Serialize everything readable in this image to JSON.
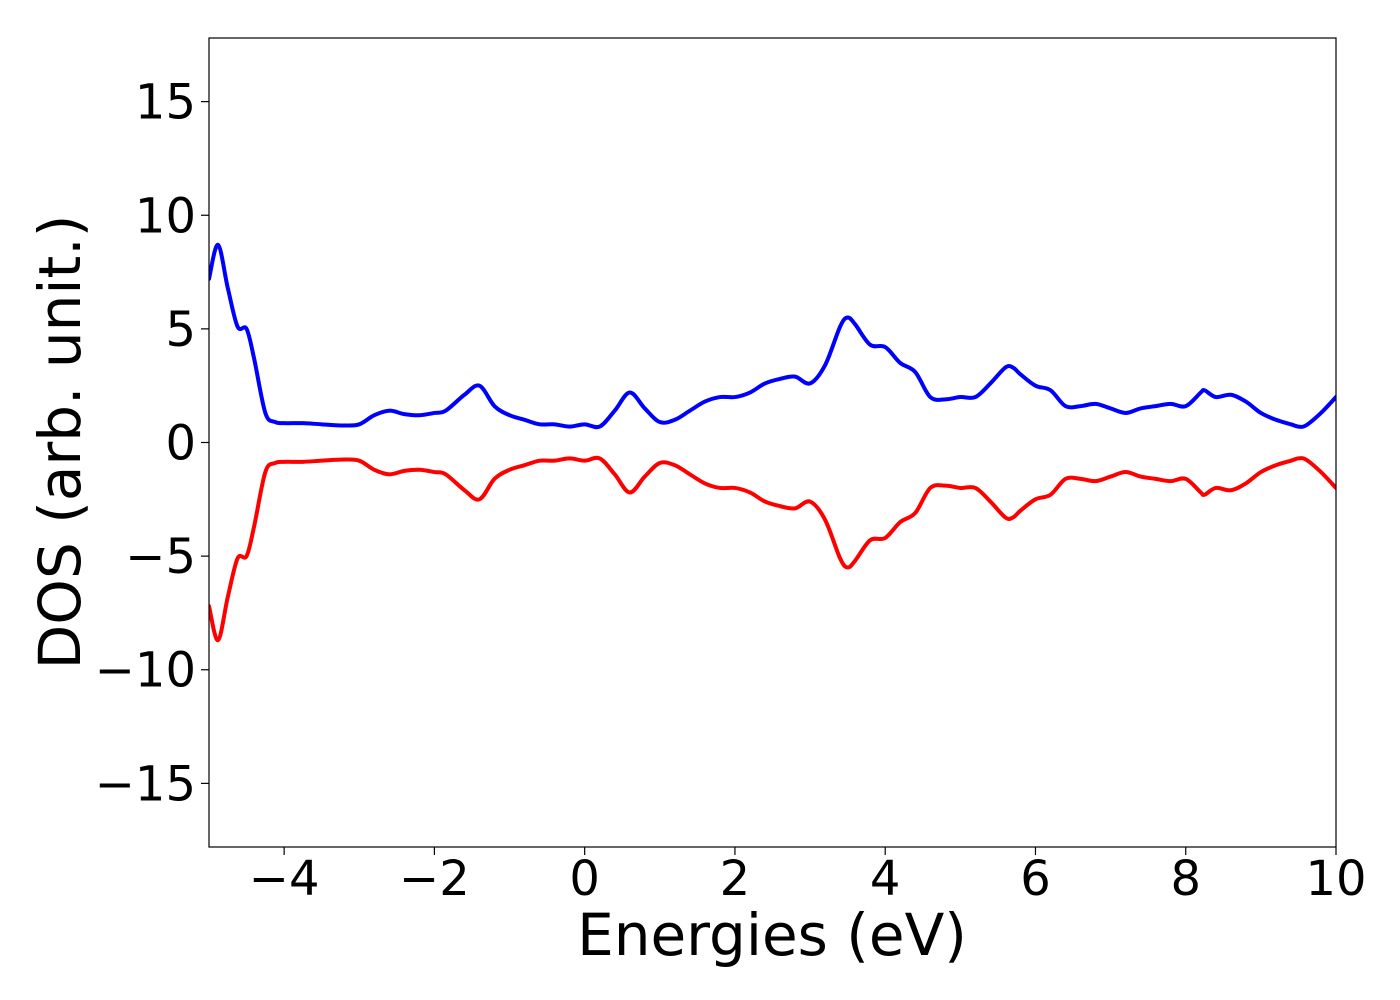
{
  "chart_data": {
    "type": "line",
    "xlabel": "Energies (eV)",
    "ylabel": "DOS (arb. unit.)",
    "xlim": [
      -5,
      10
    ],
    "ylim": [
      -17.8,
      17.8
    ],
    "xticks": [
      -4,
      -2,
      0,
      2,
      4,
      6,
      8,
      10
    ],
    "xtick_labels": [
      "−4",
      "−2",
      "0",
      "2",
      "4",
      "6",
      "8",
      "10"
    ],
    "yticks": [
      -15,
      -10,
      -5,
      0,
      5,
      10,
      15
    ],
    "ytick_labels": [
      "−15",
      "−10",
      "−5",
      "0",
      "5",
      "10",
      "15"
    ],
    "grid": false,
    "legend": "none",
    "series": [
      {
        "color": "#0000ff",
        "x": [
          -5.0,
          -4.88,
          -4.75,
          -4.62,
          -4.5,
          -4.4,
          -4.25,
          -4.12,
          -4.0,
          -3.75,
          -3.5,
          -3.2,
          -3.0,
          -2.8,
          -2.6,
          -2.4,
          -2.2,
          -2.0,
          -1.85,
          -1.6,
          -1.4,
          -1.2,
          -1.0,
          -0.8,
          -0.6,
          -0.4,
          -0.2,
          0.0,
          0.2,
          0.4,
          0.6,
          0.8,
          1.0,
          1.2,
          1.4,
          1.6,
          1.8,
          2.0,
          2.2,
          2.4,
          2.6,
          2.8,
          3.0,
          3.2,
          3.4,
          3.5,
          3.6,
          3.8,
          4.0,
          4.2,
          4.4,
          4.6,
          4.8,
          5.0,
          5.2,
          5.4,
          5.6,
          5.7,
          5.8,
          6.0,
          6.2,
          6.4,
          6.6,
          6.8,
          7.0,
          7.2,
          7.4,
          7.6,
          7.8,
          8.0,
          8.2,
          8.25,
          8.4,
          8.6,
          8.8,
          9.0,
          9.2,
          9.4,
          9.5,
          9.6,
          9.8,
          10.0
        ],
        "y": [
          7.2,
          8.7,
          6.8,
          5.1,
          5.0,
          3.7,
          1.3,
          0.9,
          0.85,
          0.85,
          0.8,
          0.75,
          0.8,
          1.2,
          1.4,
          1.25,
          1.2,
          1.3,
          1.4,
          2.1,
          2.5,
          1.6,
          1.2,
          1.0,
          0.8,
          0.8,
          0.7,
          0.8,
          0.7,
          1.4,
          2.2,
          1.5,
          0.9,
          1.0,
          1.4,
          1.8,
          2.0,
          2.0,
          2.2,
          2.6,
          2.8,
          2.9,
          2.6,
          3.4,
          5.1,
          5.5,
          5.2,
          4.3,
          4.2,
          3.5,
          3.1,
          2.0,
          1.9,
          2.0,
          2.0,
          2.6,
          3.3,
          3.3,
          3.0,
          2.5,
          2.3,
          1.6,
          1.6,
          1.7,
          1.5,
          1.3,
          1.5,
          1.6,
          1.7,
          1.6,
          2.2,
          2.3,
          2.0,
          2.1,
          1.8,
          1.3,
          1.0,
          0.8,
          0.7,
          0.75,
          1.3,
          2.0
        ]
      },
      {
        "color": "#ff0000",
        "x": [
          -5.0,
          -4.88,
          -4.75,
          -4.62,
          -4.5,
          -4.4,
          -4.25,
          -4.12,
          -4.0,
          -3.75,
          -3.5,
          -3.2,
          -3.0,
          -2.8,
          -2.6,
          -2.4,
          -2.2,
          -2.0,
          -1.85,
          -1.6,
          -1.4,
          -1.2,
          -1.0,
          -0.8,
          -0.6,
          -0.4,
          -0.2,
          0.0,
          0.2,
          0.4,
          0.6,
          0.8,
          1.0,
          1.2,
          1.4,
          1.6,
          1.8,
          2.0,
          2.2,
          2.4,
          2.6,
          2.8,
          3.0,
          3.2,
          3.4,
          3.5,
          3.6,
          3.8,
          4.0,
          4.2,
          4.4,
          4.6,
          4.8,
          5.0,
          5.2,
          5.4,
          5.6,
          5.7,
          5.8,
          6.0,
          6.2,
          6.4,
          6.6,
          6.8,
          7.0,
          7.2,
          7.4,
          7.6,
          7.8,
          8.0,
          8.2,
          8.25,
          8.4,
          8.6,
          8.8,
          9.0,
          9.2,
          9.4,
          9.5,
          9.6,
          9.8,
          10.0
        ],
        "y": [
          -7.2,
          -8.7,
          -6.8,
          -5.1,
          -5.0,
          -3.7,
          -1.3,
          -0.9,
          -0.85,
          -0.85,
          -0.8,
          -0.75,
          -0.8,
          -1.2,
          -1.4,
          -1.25,
          -1.2,
          -1.3,
          -1.4,
          -2.1,
          -2.5,
          -1.6,
          -1.2,
          -1.0,
          -0.8,
          -0.8,
          -0.7,
          -0.8,
          -0.7,
          -1.4,
          -2.2,
          -1.5,
          -0.9,
          -1.0,
          -1.4,
          -1.8,
          -2.0,
          -2.0,
          -2.2,
          -2.6,
          -2.8,
          -2.9,
          -2.6,
          -3.4,
          -5.1,
          -5.5,
          -5.2,
          -4.3,
          -4.2,
          -3.5,
          -3.1,
          -2.0,
          -1.9,
          -2.0,
          -2.0,
          -2.6,
          -3.3,
          -3.3,
          -3.0,
          -2.5,
          -2.3,
          -1.6,
          -1.6,
          -1.7,
          -1.5,
          -1.3,
          -1.5,
          -1.6,
          -1.7,
          -1.6,
          -2.2,
          -2.3,
          -2.0,
          -2.1,
          -1.8,
          -1.3,
          -1.0,
          -0.8,
          -0.7,
          -0.75,
          -1.3,
          -2.0
        ]
      }
    ]
  }
}
